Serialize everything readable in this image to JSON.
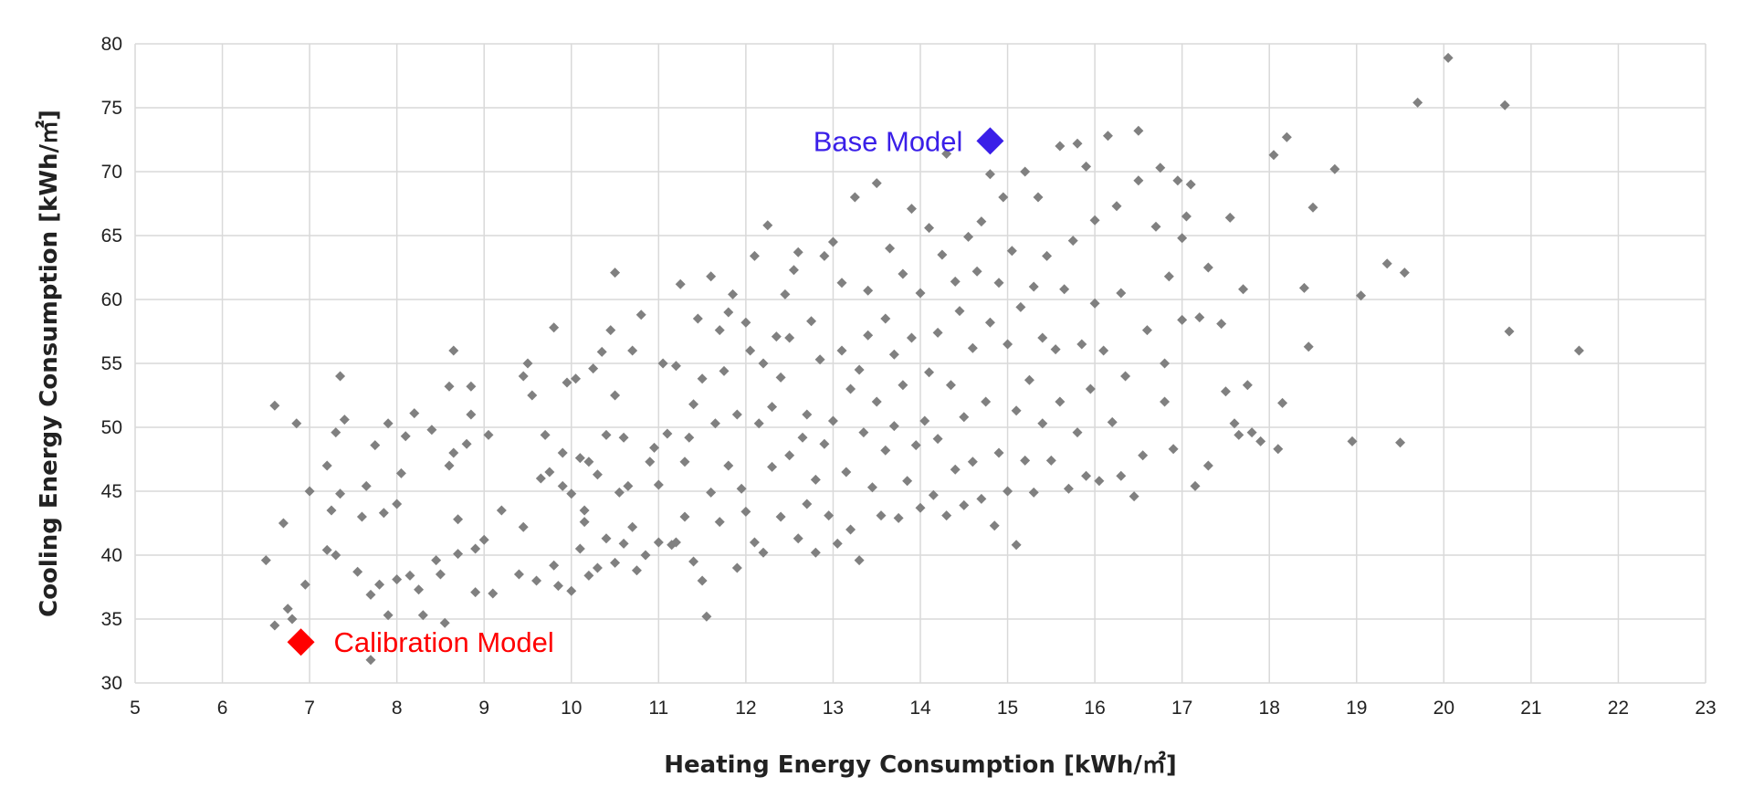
{
  "chart_data": {
    "type": "scatter",
    "xlabel": "Heating Energy Consumption [kWh/㎡]",
    "ylabel": "Cooling Energy Consumption [kWh/㎡]",
    "xlim": [
      5,
      23
    ],
    "ylim": [
      30,
      80
    ],
    "xticks": [
      5,
      6,
      7,
      8,
      9,
      10,
      11,
      12,
      13,
      14,
      15,
      16,
      17,
      18,
      19,
      20,
      21,
      22,
      23
    ],
    "yticks": [
      30,
      35,
      40,
      45,
      50,
      55,
      60,
      65,
      70,
      75,
      80
    ],
    "grid": true,
    "colors": {
      "points": "#808080",
      "base": "#3a1fe8",
      "calibration": "#ff0000",
      "grid": "#d9d9d9"
    },
    "annotations": [
      {
        "text": "Base Model",
        "x": 14.8,
        "y": 72.4,
        "marker": "diamond",
        "color": "#3a1fe8",
        "label_side": "left"
      },
      {
        "text": "Calibration Model",
        "x": 6.9,
        "y": 33.2,
        "marker": "diamond",
        "color": "#ff0000",
        "label_side": "right"
      }
    ],
    "points": [
      [
        6.5,
        39.6
      ],
      [
        6.6,
        34.5
      ],
      [
        6.6,
        51.7
      ],
      [
        6.7,
        42.5
      ],
      [
        6.75,
        35.8
      ],
      [
        6.8,
        35.0
      ],
      [
        6.85,
        50.3
      ],
      [
        6.95,
        37.7
      ],
      [
        7.0,
        45.0
      ],
      [
        7.2,
        40.4
      ],
      [
        7.2,
        47.0
      ],
      [
        7.25,
        43.5
      ],
      [
        7.3,
        49.6
      ],
      [
        7.3,
        40.0
      ],
      [
        7.35,
        44.8
      ],
      [
        7.35,
        54.0
      ],
      [
        7.4,
        50.6
      ],
      [
        7.55,
        38.7
      ],
      [
        7.6,
        43.0
      ],
      [
        7.65,
        45.4
      ],
      [
        7.7,
        31.8
      ],
      [
        7.7,
        36.9
      ],
      [
        7.75,
        48.6
      ],
      [
        7.8,
        37.7
      ],
      [
        7.85,
        43.3
      ],
      [
        7.9,
        35.3
      ],
      [
        7.9,
        50.3
      ],
      [
        8.0,
        38.1
      ],
      [
        8.0,
        44.0
      ],
      [
        8.05,
        46.4
      ],
      [
        8.1,
        49.3
      ],
      [
        8.15,
        38.4
      ],
      [
        8.2,
        51.1
      ],
      [
        8.25,
        37.3
      ],
      [
        8.3,
        35.3
      ],
      [
        8.4,
        49.8
      ],
      [
        8.45,
        39.6
      ],
      [
        8.5,
        38.5
      ],
      [
        8.55,
        34.7
      ],
      [
        8.6,
        47.0
      ],
      [
        8.6,
        53.2
      ],
      [
        8.65,
        48.0
      ],
      [
        8.65,
        56.0
      ],
      [
        8.7,
        40.1
      ],
      [
        8.7,
        42.8
      ],
      [
        8.8,
        48.7
      ],
      [
        8.85,
        51.0
      ],
      [
        8.85,
        53.2
      ],
      [
        8.9,
        40.5
      ],
      [
        8.9,
        37.1
      ],
      [
        9.0,
        41.2
      ],
      [
        9.05,
        49.4
      ],
      [
        9.1,
        37.0
      ],
      [
        9.2,
        43.5
      ],
      [
        9.4,
        38.5
      ],
      [
        9.45,
        42.2
      ],
      [
        9.45,
        54.0
      ],
      [
        9.5,
        55.0
      ],
      [
        9.55,
        52.5
      ],
      [
        9.6,
        38.0
      ],
      [
        9.65,
        46.0
      ],
      [
        9.7,
        49.4
      ],
      [
        9.75,
        46.5
      ],
      [
        9.8,
        57.8
      ],
      [
        9.8,
        39.2
      ],
      [
        9.85,
        37.6
      ],
      [
        9.9,
        45.4
      ],
      [
        9.9,
        48.0
      ],
      [
        9.95,
        53.5
      ],
      [
        10.0,
        37.2
      ],
      [
        10.0,
        44.8
      ],
      [
        10.05,
        53.8
      ],
      [
        10.1,
        47.6
      ],
      [
        10.1,
        40.5
      ],
      [
        10.15,
        42.6
      ],
      [
        10.15,
        43.5
      ],
      [
        10.2,
        47.3
      ],
      [
        10.2,
        38.4
      ],
      [
        10.25,
        54.6
      ],
      [
        10.3,
        46.3
      ],
      [
        10.3,
        39.0
      ],
      [
        10.35,
        55.9
      ],
      [
        10.4,
        49.4
      ],
      [
        10.4,
        41.3
      ],
      [
        10.45,
        57.6
      ],
      [
        10.5,
        62.1
      ],
      [
        10.5,
        52.5
      ],
      [
        10.5,
        39.4
      ],
      [
        10.55,
        44.9
      ],
      [
        10.6,
        49.2
      ],
      [
        10.6,
        40.9
      ],
      [
        10.65,
        45.4
      ],
      [
        10.7,
        56.0
      ],
      [
        10.7,
        42.2
      ],
      [
        10.75,
        38.8
      ],
      [
        10.8,
        58.8
      ],
      [
        10.85,
        40.0
      ],
      [
        10.9,
        47.3
      ],
      [
        10.95,
        48.4
      ],
      [
        11.0,
        45.5
      ],
      [
        11.0,
        41.0
      ],
      [
        11.05,
        55.0
      ],
      [
        11.1,
        49.5
      ],
      [
        11.15,
        40.8
      ],
      [
        11.2,
        54.8
      ],
      [
        11.2,
        41.0
      ],
      [
        11.25,
        61.2
      ],
      [
        11.3,
        47.3
      ],
      [
        11.3,
        43.0
      ],
      [
        11.35,
        49.2
      ],
      [
        11.4,
        51.8
      ],
      [
        11.4,
        39.5
      ],
      [
        11.45,
        58.5
      ],
      [
        11.5,
        53.8
      ],
      [
        11.5,
        38.0
      ],
      [
        11.55,
        35.2
      ],
      [
        11.6,
        44.9
      ],
      [
        11.6,
        61.8
      ],
      [
        11.65,
        50.3
      ],
      [
        11.7,
        57.6
      ],
      [
        11.7,
        42.6
      ],
      [
        11.75,
        54.4
      ],
      [
        11.8,
        59.0
      ],
      [
        11.8,
        47.0
      ],
      [
        11.85,
        60.4
      ],
      [
        11.9,
        51.0
      ],
      [
        11.9,
        39.0
      ],
      [
        11.95,
        45.2
      ],
      [
        12.0,
        43.4
      ],
      [
        12.0,
        58.2
      ],
      [
        12.05,
        56.0
      ],
      [
        12.1,
        63.4
      ],
      [
        12.1,
        41.0
      ],
      [
        12.15,
        50.3
      ],
      [
        12.2,
        55.0
      ],
      [
        12.2,
        40.2
      ],
      [
        12.25,
        65.8
      ],
      [
        12.3,
        51.6
      ],
      [
        12.3,
        46.9
      ],
      [
        12.35,
        57.1
      ],
      [
        12.4,
        53.9
      ],
      [
        12.4,
        43.0
      ],
      [
        12.45,
        60.4
      ],
      [
        12.5,
        57.0
      ],
      [
        12.5,
        47.8
      ],
      [
        12.55,
        62.3
      ],
      [
        12.6,
        63.7
      ],
      [
        12.6,
        41.3
      ],
      [
        12.65,
        49.2
      ],
      [
        12.7,
        51.0
      ],
      [
        12.7,
        44.0
      ],
      [
        12.75,
        58.3
      ],
      [
        12.8,
        45.9
      ],
      [
        12.8,
        40.2
      ],
      [
        12.85,
        55.3
      ],
      [
        12.9,
        63.4
      ],
      [
        12.9,
        48.7
      ],
      [
        12.95,
        43.1
      ],
      [
        13.0,
        64.5
      ],
      [
        13.0,
        50.5
      ],
      [
        13.05,
        40.9
      ],
      [
        13.1,
        61.3
      ],
      [
        13.1,
        56.0
      ],
      [
        13.15,
        46.5
      ],
      [
        13.2,
        53.0
      ],
      [
        13.2,
        42.0
      ],
      [
        13.25,
        68.0
      ],
      [
        13.3,
        54.5
      ],
      [
        13.3,
        39.6
      ],
      [
        13.35,
        49.6
      ],
      [
        13.4,
        60.7
      ],
      [
        13.4,
        57.2
      ],
      [
        13.45,
        45.3
      ],
      [
        13.5,
        69.1
      ],
      [
        13.5,
        52.0
      ],
      [
        13.55,
        43.1
      ],
      [
        13.6,
        58.5
      ],
      [
        13.6,
        48.2
      ],
      [
        13.65,
        64.0
      ],
      [
        13.7,
        55.7
      ],
      [
        13.7,
        50.1
      ],
      [
        13.75,
        42.9
      ],
      [
        13.8,
        62.0
      ],
      [
        13.8,
        53.3
      ],
      [
        13.85,
        45.8
      ],
      [
        13.9,
        67.1
      ],
      [
        13.9,
        57.0
      ],
      [
        13.95,
        48.6
      ],
      [
        14.0,
        43.7
      ],
      [
        14.0,
        60.5
      ],
      [
        14.05,
        50.5
      ],
      [
        14.1,
        65.6
      ],
      [
        14.1,
        54.3
      ],
      [
        14.15,
        44.7
      ],
      [
        14.2,
        57.4
      ],
      [
        14.2,
        49.1
      ],
      [
        14.25,
        63.5
      ],
      [
        14.3,
        71.4
      ],
      [
        14.3,
        43.1
      ],
      [
        14.35,
        53.3
      ],
      [
        14.4,
        61.4
      ],
      [
        14.4,
        46.7
      ],
      [
        14.45,
        59.1
      ],
      [
        14.5,
        50.8
      ],
      [
        14.5,
        43.9
      ],
      [
        14.55,
        64.9
      ],
      [
        14.6,
        56.2
      ],
      [
        14.6,
        47.3
      ],
      [
        14.65,
        62.2
      ],
      [
        14.7,
        66.1
      ],
      [
        14.7,
        44.4
      ],
      [
        14.75,
        52.0
      ],
      [
        14.8,
        69.8
      ],
      [
        14.8,
        58.2
      ],
      [
        14.85,
        42.3
      ],
      [
        14.9,
        61.3
      ],
      [
        14.9,
        48.0
      ],
      [
        14.95,
        68.0
      ],
      [
        15.0,
        56.5
      ],
      [
        15.0,
        45.0
      ],
      [
        15.05,
        63.8
      ],
      [
        15.1,
        51.3
      ],
      [
        15.1,
        40.8
      ],
      [
        15.15,
        59.4
      ],
      [
        15.2,
        70.0
      ],
      [
        15.2,
        47.4
      ],
      [
        15.25,
        53.7
      ],
      [
        15.3,
        61.0
      ],
      [
        15.3,
        44.9
      ],
      [
        15.35,
        68.0
      ],
      [
        15.4,
        57.0
      ],
      [
        15.4,
        50.3
      ],
      [
        15.45,
        63.4
      ],
      [
        15.5,
        47.4
      ],
      [
        15.55,
        56.1
      ],
      [
        15.6,
        72.0
      ],
      [
        15.6,
        52.0
      ],
      [
        15.65,
        60.8
      ],
      [
        15.7,
        45.2
      ],
      [
        15.75,
        64.6
      ],
      [
        15.8,
        72.2
      ],
      [
        15.8,
        49.6
      ],
      [
        15.85,
        56.5
      ],
      [
        15.9,
        70.4
      ],
      [
        15.9,
        46.2
      ],
      [
        15.95,
        53.0
      ],
      [
        16.0,
        66.2
      ],
      [
        16.0,
        59.7
      ],
      [
        16.05,
        45.8
      ],
      [
        16.1,
        56.0
      ],
      [
        16.15,
        72.8
      ],
      [
        16.2,
        50.4
      ],
      [
        16.25,
        67.3
      ],
      [
        16.3,
        46.2
      ],
      [
        16.3,
        60.5
      ],
      [
        16.35,
        54.0
      ],
      [
        16.45,
        44.6
      ],
      [
        16.5,
        73.2
      ],
      [
        16.5,
        69.3
      ],
      [
        16.55,
        47.8
      ],
      [
        16.6,
        57.6
      ],
      [
        16.7,
        65.7
      ],
      [
        16.75,
        70.3
      ],
      [
        16.8,
        55.0
      ],
      [
        16.8,
        52.0
      ],
      [
        16.85,
        61.8
      ],
      [
        16.9,
        48.3
      ],
      [
        16.95,
        69.3
      ],
      [
        17.0,
        64.8
      ],
      [
        17.0,
        58.4
      ],
      [
        17.05,
        66.5
      ],
      [
        17.1,
        69.0
      ],
      [
        17.15,
        45.4
      ],
      [
        17.2,
        58.6
      ],
      [
        17.3,
        62.5
      ],
      [
        17.3,
        47.0
      ],
      [
        17.45,
        58.1
      ],
      [
        17.5,
        52.8
      ],
      [
        17.55,
        66.4
      ],
      [
        17.6,
        50.3
      ],
      [
        17.65,
        49.4
      ],
      [
        17.7,
        60.8
      ],
      [
        17.75,
        53.3
      ],
      [
        17.8,
        49.6
      ],
      [
        17.9,
        48.9
      ],
      [
        18.05,
        71.3
      ],
      [
        18.1,
        48.3
      ],
      [
        18.15,
        51.9
      ],
      [
        18.2,
        72.7
      ],
      [
        18.4,
        60.9
      ],
      [
        18.45,
        56.3
      ],
      [
        18.5,
        67.2
      ],
      [
        18.75,
        70.2
      ],
      [
        18.95,
        48.9
      ],
      [
        19.05,
        60.3
      ],
      [
        19.35,
        62.8
      ],
      [
        19.5,
        48.8
      ],
      [
        19.55,
        62.1
      ],
      [
        19.7,
        75.4
      ],
      [
        20.05,
        78.9
      ],
      [
        20.7,
        75.2
      ],
      [
        20.75,
        57.5
      ],
      [
        21.55,
        56.0
      ]
    ]
  }
}
